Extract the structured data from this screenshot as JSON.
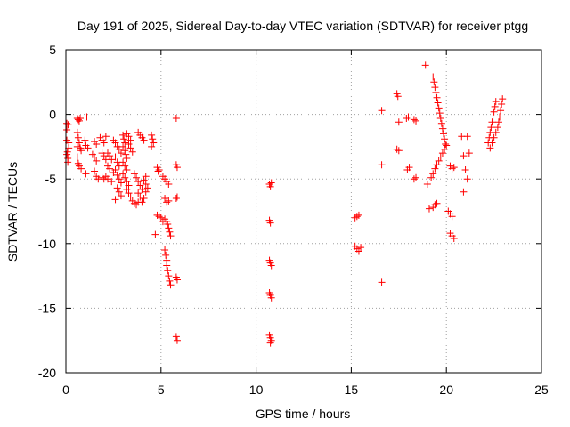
{
  "chart_data": {
    "type": "scatter",
    "title": "Day 191 of 2025, Sidereal Day-to-day VTEC variation (SDTVAR) for receiver ptgg",
    "xlabel": "GPS time / hours",
    "ylabel": "SDTVAR / TECUs",
    "xlim": [
      0,
      25
    ],
    "ylim": [
      -20,
      5
    ],
    "xticks": [
      0,
      5,
      10,
      15,
      20,
      25
    ],
    "yticks": [
      -20,
      -15,
      -10,
      -5,
      0,
      5
    ],
    "xtick_labels": [
      "0",
      "5",
      "10",
      "15",
      "20",
      "25"
    ],
    "ytick_labels": [
      "-20",
      "-15",
      "-10",
      "-5",
      "0",
      "5"
    ],
    "grid": true,
    "marker": "+",
    "color": "#ff0000",
    "series": [
      {
        "name": "SDTVAR",
        "points": [
          [
            0.05,
            -0.7
          ],
          [
            0.05,
            -1.2
          ],
          [
            0.05,
            -2.0
          ],
          [
            0.08,
            -2.9
          ],
          [
            0.05,
            -3.1
          ],
          [
            0.1,
            -3.4
          ],
          [
            0.12,
            -0.8
          ],
          [
            0.15,
            -2.2
          ],
          [
            0.15,
            -2.6
          ],
          [
            0.1,
            -3.7
          ],
          [
            0.6,
            -0.3
          ],
          [
            0.65,
            -0.4
          ],
          [
            0.7,
            -0.5
          ],
          [
            0.75,
            -0.3
          ],
          [
            0.6,
            -1.4
          ],
          [
            0.65,
            -1.8
          ],
          [
            0.7,
            -2.2
          ],
          [
            0.6,
            -2.5
          ],
          [
            0.75,
            -2.6
          ],
          [
            0.8,
            -2.8
          ],
          [
            0.6,
            -3.3
          ],
          [
            0.65,
            -3.8
          ],
          [
            0.7,
            -4.0
          ],
          [
            0.8,
            -4.2
          ],
          [
            1.1,
            -0.2
          ],
          [
            1.05,
            -4.6
          ],
          [
            1.0,
            -2.0
          ],
          [
            1.05,
            -2.4
          ],
          [
            1.15,
            -2.6
          ],
          [
            1.4,
            -3.1
          ],
          [
            1.5,
            -3.3
          ],
          [
            1.6,
            -3.6
          ],
          [
            1.5,
            -2.1
          ],
          [
            1.6,
            -2.3
          ],
          [
            1.5,
            -4.4
          ],
          [
            1.6,
            -4.8
          ],
          [
            1.7,
            -5.0
          ],
          [
            1.8,
            -1.8
          ],
          [
            1.9,
            -2.0
          ],
          [
            2.0,
            -2.2
          ],
          [
            2.1,
            -1.7
          ],
          [
            1.9,
            -3.0
          ],
          [
            2.0,
            -3.2
          ],
          [
            2.1,
            -3.5
          ],
          [
            1.9,
            -4.9
          ],
          [
            2.0,
            -5.0
          ],
          [
            2.1,
            -4.8
          ],
          [
            2.2,
            -3.0
          ],
          [
            2.3,
            -3.2
          ],
          [
            2.4,
            -3.5
          ],
          [
            2.2,
            -4.0
          ],
          [
            2.3,
            -4.2
          ],
          [
            2.5,
            -4.5
          ],
          [
            2.2,
            -5.0
          ],
          [
            2.4,
            -5.2
          ],
          [
            2.5,
            -2.0
          ],
          [
            2.6,
            -2.2
          ],
          [
            2.7,
            -2.5
          ],
          [
            2.8,
            -2.7
          ],
          [
            2.9,
            -3.0
          ],
          [
            2.6,
            -3.3
          ],
          [
            2.7,
            -3.7
          ],
          [
            2.8,
            -4.0
          ],
          [
            2.6,
            -4.3
          ],
          [
            2.7,
            -4.7
          ],
          [
            2.8,
            -5.0
          ],
          [
            2.9,
            -5.3
          ],
          [
            2.7,
            -5.7
          ],
          [
            2.8,
            -6.0
          ],
          [
            2.9,
            -6.3
          ],
          [
            2.6,
            -6.6
          ],
          [
            3.0,
            -1.6
          ],
          [
            3.05,
            -1.9
          ],
          [
            3.1,
            -2.2
          ],
          [
            3.0,
            -2.5
          ],
          [
            3.1,
            -2.8
          ],
          [
            3.15,
            -3.1
          ],
          [
            3.2,
            -3.4
          ],
          [
            3.0,
            -3.7
          ],
          [
            3.1,
            -4.0
          ],
          [
            3.2,
            -4.3
          ],
          [
            3.0,
            -4.6
          ],
          [
            3.1,
            -4.9
          ],
          [
            3.2,
            -5.2
          ],
          [
            3.3,
            -5.5
          ],
          [
            3.2,
            -5.8
          ],
          [
            3.3,
            -6.1
          ],
          [
            3.4,
            -6.4
          ],
          [
            3.5,
            -6.7
          ],
          [
            3.2,
            -1.5
          ],
          [
            3.3,
            -1.7
          ],
          [
            3.4,
            -2.0
          ],
          [
            3.3,
            -2.3
          ],
          [
            3.4,
            -2.6
          ],
          [
            3.5,
            -2.9
          ],
          [
            3.6,
            -6.9
          ],
          [
            3.7,
            -7.0
          ],
          [
            3.8,
            -6.8
          ],
          [
            3.6,
            -4.6
          ],
          [
            3.7,
            -4.9
          ],
          [
            3.8,
            -5.2
          ],
          [
            3.9,
            -5.5
          ],
          [
            4.0,
            -5.8
          ],
          [
            3.8,
            -6.1
          ],
          [
            3.9,
            -6.4
          ],
          [
            4.0,
            -6.8
          ],
          [
            4.1,
            -6.5
          ],
          [
            3.8,
            -1.4
          ],
          [
            3.9,
            -1.6
          ],
          [
            4.0,
            -1.8
          ],
          [
            4.1,
            -2.0
          ],
          [
            4.2,
            -4.8
          ],
          [
            4.1,
            -5.1
          ],
          [
            4.2,
            -5.4
          ],
          [
            4.3,
            -5.7
          ],
          [
            4.2,
            -6.0
          ],
          [
            4.5,
            -1.6
          ],
          [
            4.55,
            -1.9
          ],
          [
            4.6,
            -2.2
          ],
          [
            4.5,
            -2.5
          ],
          [
            4.8,
            -4.1
          ],
          [
            4.85,
            -4.4
          ],
          [
            4.9,
            -4.3
          ],
          [
            4.8,
            -7.8
          ],
          [
            4.9,
            -7.9
          ],
          [
            4.7,
            -9.3
          ],
          [
            5.0,
            -8.0
          ],
          [
            5.1,
            -8.3
          ],
          [
            5.1,
            -4.8
          ],
          [
            5.2,
            -5.0
          ],
          [
            5.3,
            -5.2
          ],
          [
            5.4,
            -5.4
          ],
          [
            5.2,
            -6.5
          ],
          [
            5.3,
            -6.8
          ],
          [
            5.4,
            -6.7
          ],
          [
            5.2,
            -8.1
          ],
          [
            5.3,
            -8.3
          ],
          [
            5.35,
            -8.5
          ],
          [
            5.4,
            -8.8
          ],
          [
            5.45,
            -9.1
          ],
          [
            5.5,
            -9.4
          ],
          [
            5.2,
            -10.5
          ],
          [
            5.25,
            -10.9
          ],
          [
            5.3,
            -11.3
          ],
          [
            5.3,
            -11.7
          ],
          [
            5.35,
            -12.1
          ],
          [
            5.4,
            -12.5
          ],
          [
            5.45,
            -12.9
          ],
          [
            5.5,
            -13.2
          ],
          [
            5.8,
            -0.3
          ],
          [
            5.8,
            -3.9
          ],
          [
            5.85,
            -4.1
          ],
          [
            5.8,
            -6.5
          ],
          [
            5.85,
            -6.4
          ],
          [
            5.8,
            -12.6
          ],
          [
            5.85,
            -12.8
          ],
          [
            5.8,
            -17.2
          ],
          [
            5.85,
            -17.5
          ],
          [
            10.7,
            -5.4
          ],
          [
            10.75,
            -5.6
          ],
          [
            10.8,
            -5.3
          ],
          [
            10.7,
            -8.2
          ],
          [
            10.75,
            -8.4
          ],
          [
            10.7,
            -11.3
          ],
          [
            10.75,
            -11.5
          ],
          [
            10.8,
            -11.7
          ],
          [
            10.7,
            -13.8
          ],
          [
            10.75,
            -14.0
          ],
          [
            10.8,
            -14.2
          ],
          [
            10.7,
            -17.1
          ],
          [
            10.75,
            -17.3
          ],
          [
            10.8,
            -17.5
          ],
          [
            10.75,
            -17.7
          ],
          [
            15.2,
            -8.0
          ],
          [
            15.3,
            -7.9
          ],
          [
            15.4,
            -7.8
          ],
          [
            15.2,
            -10.2
          ],
          [
            15.3,
            -10.4
          ],
          [
            15.4,
            -10.6
          ],
          [
            15.5,
            -10.3
          ],
          [
            16.6,
            0.3
          ],
          [
            16.6,
            -3.9
          ],
          [
            16.6,
            -13.0
          ],
          [
            17.4,
            1.6
          ],
          [
            17.45,
            1.4
          ],
          [
            17.4,
            -2.7
          ],
          [
            17.5,
            -2.8
          ],
          [
            17.5,
            -0.6
          ],
          [
            17.9,
            -0.3
          ],
          [
            18.0,
            -0.2
          ],
          [
            17.95,
            -4.3
          ],
          [
            18.05,
            -4.1
          ],
          [
            18.3,
            -0.4
          ],
          [
            18.4,
            -0.5
          ],
          [
            18.3,
            -5.0
          ],
          [
            18.4,
            -4.9
          ],
          [
            18.9,
            3.8
          ],
          [
            19.0,
            -5.4
          ],
          [
            19.1,
            -7.3
          ],
          [
            19.2,
            -4.9
          ],
          [
            19.3,
            -4.6
          ],
          [
            19.3,
            2.9
          ],
          [
            19.35,
            2.5
          ],
          [
            19.4,
            2.1
          ],
          [
            19.45,
            1.7
          ],
          [
            19.5,
            1.3
          ],
          [
            19.55,
            0.9
          ],
          [
            19.6,
            0.5
          ],
          [
            19.65,
            0.1
          ],
          [
            19.7,
            -0.3
          ],
          [
            19.75,
            -0.7
          ],
          [
            19.8,
            -1.1
          ],
          [
            19.85,
            -1.5
          ],
          [
            19.9,
            -1.9
          ],
          [
            19.95,
            -2.3
          ],
          [
            19.4,
            -4.2
          ],
          [
            19.5,
            -3.9
          ],
          [
            19.6,
            -3.6
          ],
          [
            19.7,
            -3.3
          ],
          [
            19.8,
            -3.0
          ],
          [
            19.9,
            -2.7
          ],
          [
            20.0,
            -2.4
          ],
          [
            19.3,
            -7.2
          ],
          [
            19.4,
            -7.0
          ],
          [
            19.5,
            -6.9
          ],
          [
            20.2,
            -4.0
          ],
          [
            20.3,
            -4.2
          ],
          [
            20.4,
            -4.1
          ],
          [
            20.1,
            -7.5
          ],
          [
            20.2,
            -7.7
          ],
          [
            20.3,
            -7.9
          ],
          [
            20.2,
            -9.2
          ],
          [
            20.3,
            -9.4
          ],
          [
            20.4,
            -9.6
          ],
          [
            20.8,
            -1.7
          ],
          [
            20.9,
            -3.2
          ],
          [
            21.0,
            -4.3
          ],
          [
            20.9,
            -6.0
          ],
          [
            21.1,
            -1.7
          ],
          [
            21.2,
            -3.0
          ],
          [
            21.1,
            -5.0
          ],
          [
            22.2,
            -2.2
          ],
          [
            22.25,
            -1.8
          ],
          [
            22.3,
            -1.4
          ],
          [
            22.35,
            -1.0
          ],
          [
            22.4,
            -0.6
          ],
          [
            22.45,
            -0.2
          ],
          [
            22.5,
            0.2
          ],
          [
            22.55,
            0.6
          ],
          [
            22.6,
            1.0
          ],
          [
            22.3,
            -2.6
          ],
          [
            22.4,
            -2.2
          ],
          [
            22.5,
            -1.8
          ],
          [
            22.6,
            -1.4
          ],
          [
            22.7,
            -1.0
          ],
          [
            22.75,
            -0.6
          ],
          [
            22.8,
            -0.2
          ],
          [
            22.85,
            0.3
          ],
          [
            22.9,
            0.8
          ],
          [
            22.95,
            1.2
          ]
        ]
      }
    ]
  }
}
